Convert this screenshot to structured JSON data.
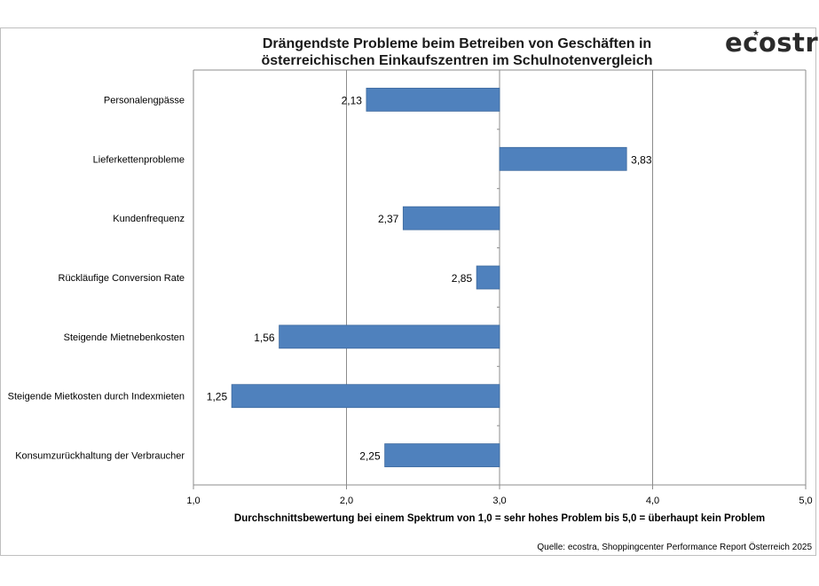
{
  "chart_data": {
    "type": "bar",
    "orientation": "horizontal",
    "title": "Drängendste Probleme beim Betreiben von Geschäften in österreichischen Einkaufszentren im Schulnotenvergleich",
    "title_lines": [
      "Drängendste Probleme beim Betreiben von Geschäften in",
      "österreichischen Einkaufszentren im Schulnotenvergleich"
    ],
    "categories": [
      "Personalengpässe",
      "Lieferkettenprobleme",
      "Kundenfrequenz",
      "Rückläufige Conversion Rate",
      "Steigende Mietnebenkosten",
      "Steigende Mietkosten durch Indexmieten",
      "Konsumzurückhaltung der Verbraucher"
    ],
    "values": [
      2.13,
      3.83,
      2.37,
      2.85,
      1.56,
      1.25,
      2.25
    ],
    "value_labels": [
      "2,13",
      "3,83",
      "2,37",
      "2,85",
      "1,56",
      "1,25",
      "2,25"
    ],
    "baseline": 3.0,
    "xlim": [
      1.0,
      5.0
    ],
    "xticks": [
      "1,0",
      "2,0",
      "3,0",
      "4,0",
      "5,0"
    ],
    "xlabel": "Durchschnittsbewertung bei einem Spektrum von 1,0 = sehr hohes Problem bis 5,0 = überhaupt kein Problem",
    "ylabel": "",
    "grid": true,
    "bar_color": "#4f81bd"
  },
  "logo": {
    "text": "ecostra"
  },
  "source": "Quelle: ecostra, Shoppingcenter Performance Report Österreich 2025"
}
